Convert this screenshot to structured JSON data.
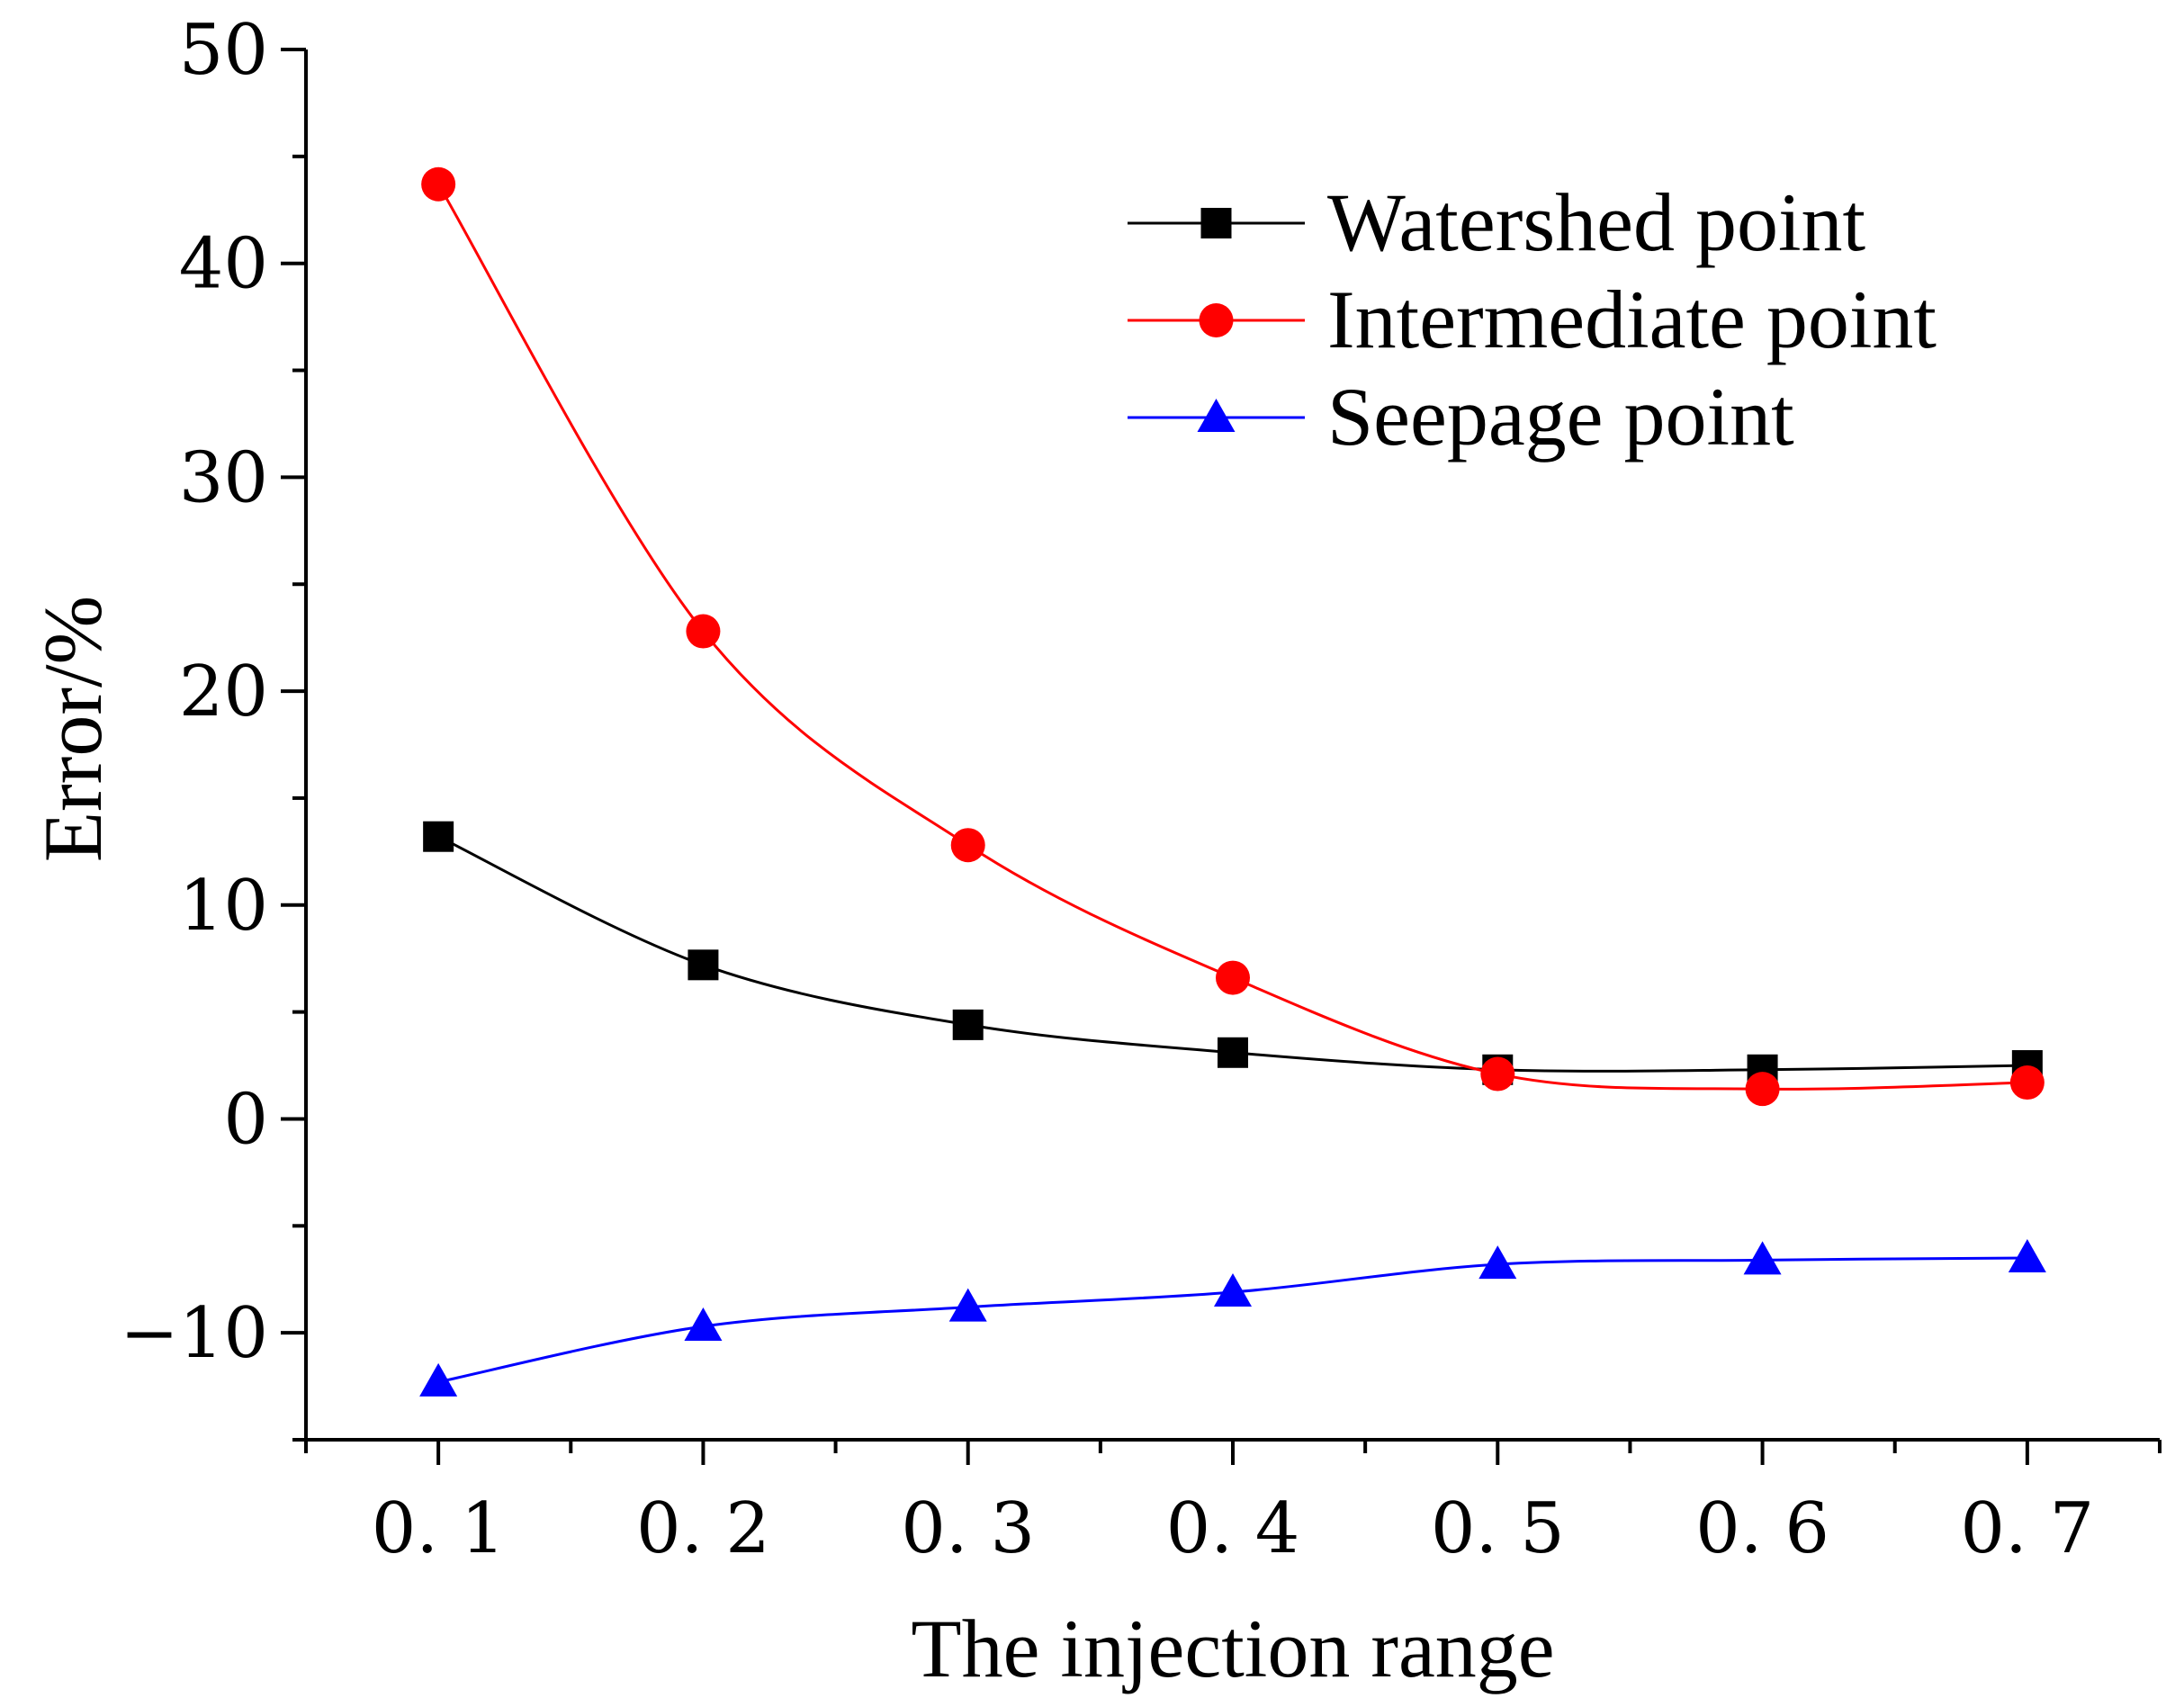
{
  "chart_data": {
    "type": "line",
    "title": "",
    "xlabel": "The injection range",
    "ylabel": "Error/%",
    "xlim": [
      0.05,
      0.75
    ],
    "ylim": [
      -15,
      50
    ],
    "x": [
      0.1,
      0.2,
      0.3,
      0.4,
      0.5,
      0.6,
      0.7
    ],
    "x_tick_labels": [
      "0. 1",
      "0. 2",
      "0. 3",
      "0. 4",
      "0. 5",
      "0. 6",
      "0. 7"
    ],
    "y_ticks": [
      -10,
      0,
      10,
      20,
      30,
      40,
      50
    ],
    "y_tick_labels": [
      "−10",
      "0",
      "10",
      "20",
      "30",
      "40",
      "50"
    ],
    "grid": false,
    "legend_position": "top-right",
    "series": [
      {
        "name": "Watershed point",
        "marker": "square",
        "color": "#000000",
        "values": [
          13.2,
          7.2,
          4.4,
          3.1,
          2.3,
          2.3,
          2.5
        ]
      },
      {
        "name": "Intermediate point",
        "marker": "circle",
        "color": "#ff0000",
        "values": [
          43.7,
          22.8,
          12.8,
          6.6,
          2.1,
          1.4,
          1.7
        ]
      },
      {
        "name": "Seepage point",
        "marker": "triangle",
        "color": "#0000ff",
        "values": [
          -12.3,
          -9.7,
          -8.8,
          -8.1,
          -6.8,
          -6.6,
          -6.5
        ]
      }
    ]
  }
}
